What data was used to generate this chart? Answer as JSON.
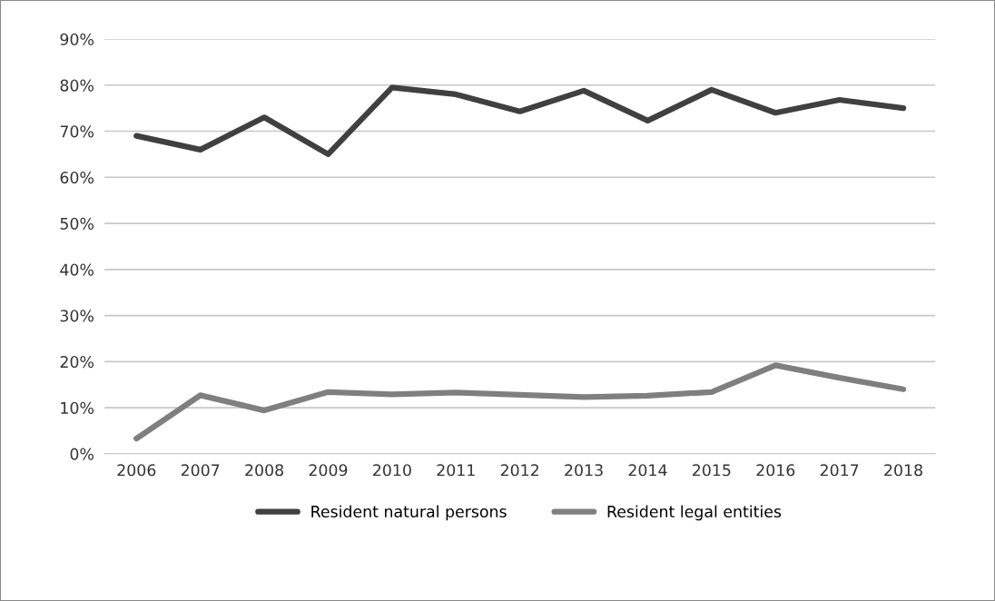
{
  "chart_data": {
    "type": "line",
    "categories": [
      "2006",
      "2007",
      "2008",
      "2009",
      "2010",
      "2011",
      "2012",
      "2013",
      "2014",
      "2015",
      "2016",
      "2017",
      "2018"
    ],
    "series": [
      {
        "name": "Resident natural persons",
        "color": "#404040",
        "values": [
          69,
          66,
          73,
          65,
          79.5,
          78,
          74.3,
          78.8,
          72.3,
          79,
          74,
          76.8,
          75
        ]
      },
      {
        "name": "Resident legal entities",
        "color": "#7f7f7f",
        "values": [
          3.3,
          12.7,
          9.4,
          13.4,
          12.9,
          13.3,
          12.8,
          12.3,
          12.6,
          13.4,
          19.2,
          16.5,
          14
        ]
      }
    ],
    "ylim": [
      0,
      90
    ],
    "yticks": [
      {
        "value": 0,
        "label": "0%"
      },
      {
        "value": 10,
        "label": "10%"
      },
      {
        "value": 20,
        "label": "20%"
      },
      {
        "value": 30,
        "label": "30%"
      },
      {
        "value": 40,
        "label": "40%"
      },
      {
        "value": 50,
        "label": "50%"
      },
      {
        "value": 60,
        "label": "60%"
      },
      {
        "value": 70,
        "label": "70%"
      },
      {
        "value": 80,
        "label": "80%"
      },
      {
        "value": 90,
        "label": "90%"
      }
    ],
    "grid": "y",
    "legend": "bottom",
    "marker": "none",
    "line_style": "solid"
  }
}
